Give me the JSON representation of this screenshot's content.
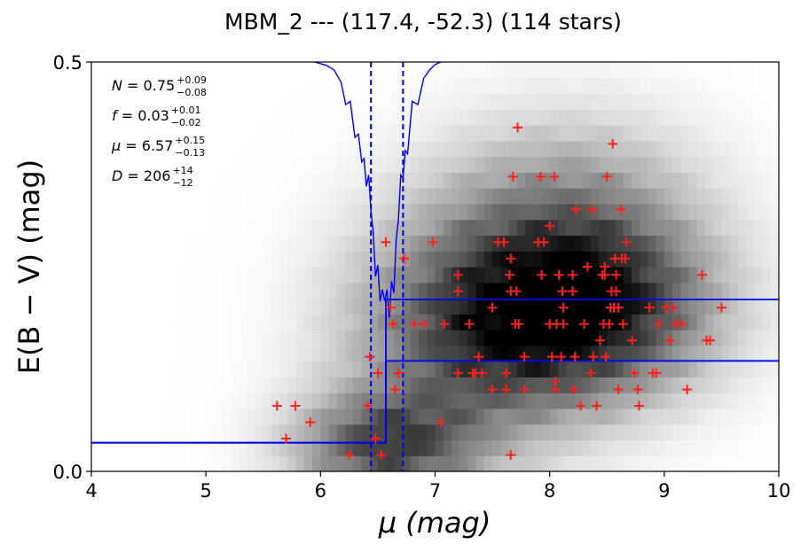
{
  "chart_data": {
    "type": "scatter",
    "title": "MBM_2 --- (117.4, -52.3) (114 stars)",
    "xlabel": "μ (mag)",
    "ylabel": "E(B − V) (mag)",
    "xlim": [
      4,
      10
    ],
    "ylim": [
      0.0,
      0.5
    ],
    "xticks": [
      "4",
      "5",
      "6",
      "7",
      "8",
      "9",
      "10"
    ],
    "yticks": [
      "0.5",
      "0.0"
    ],
    "background": "grayscale density map of reddening vs distance modulus",
    "annotations": [
      {
        "symbol": "N",
        "value": "0.75",
        "upper": "+0.09",
        "lower": "−0.08"
      },
      {
        "symbol": "f",
        "value": "0.03",
        "upper": "+0.01",
        "lower": "−0.02"
      },
      {
        "symbol": "μ",
        "value": "6.57",
        "upper": "+0.15",
        "lower": "−0.13"
      },
      {
        "symbol": "D",
        "value": "206",
        "upper": "+14",
        "lower": "−12"
      }
    ],
    "colors": {
      "stars": "#ff2020",
      "model": "#0000ee",
      "frame": "#000000"
    },
    "stars": {
      "marker": "plus",
      "x": [
        5.62,
        5.78,
        5.7,
        5.91,
        6.25,
        6.41,
        6.48,
        6.53,
        6.43,
        6.5,
        6.57,
        6.61,
        6.63,
        6.65,
        6.68,
        6.73,
        6.82,
        6.9,
        6.98,
        7.05,
        7.08,
        7.2,
        7.2,
        7.2,
        7.3,
        7.33,
        7.35,
        7.38,
        7.41,
        7.5,
        7.5,
        7.55,
        7.6,
        7.62,
        7.62,
        7.65,
        7.66,
        7.66,
        7.68,
        7.7,
        7.71,
        7.72,
        7.73,
        7.78,
        7.78,
        7.9,
        7.92,
        7.93,
        7.95,
        8.0,
        8.0,
        8.02,
        8.04,
        8.05,
        8.05,
        8.06,
        8.08,
        8.1,
        8.11,
        8.12,
        8.12,
        8.2,
        8.2,
        8.21,
        8.22,
        8.23,
        8.27,
        8.3,
        8.33,
        8.36,
        8.37,
        8.38,
        8.41,
        8.44,
        8.46,
        8.47,
        8.48,
        8.48,
        8.49,
        8.5,
        8.52,
        8.53,
        8.54,
        8.55,
        8.56,
        8.57,
        8.58,
        8.58,
        8.6,
        8.6,
        8.62,
        8.63,
        8.64,
        8.66,
        8.67,
        8.72,
        8.74,
        8.77,
        8.78,
        8.87,
        8.9,
        8.93,
        8.95,
        9.02,
        9.05,
        9.08,
        9.1,
        9.15,
        9.2,
        9.33,
        9.37,
        9.4,
        9.5,
        7.66
      ],
      "y": [
        0.08,
        0.08,
        0.04,
        0.06,
        0.02,
        0.08,
        0.04,
        0.02,
        0.14,
        0.12,
        0.28,
        0.2,
        0.18,
        0.1,
        0.12,
        0.26,
        0.18,
        0.18,
        0.28,
        0.06,
        0.18,
        0.24,
        0.22,
        0.12,
        0.18,
        0.12,
        0.12,
        0.14,
        0.12,
        0.2,
        0.1,
        0.28,
        0.28,
        0.1,
        0.12,
        0.24,
        0.26,
        0.22,
        0.36,
        0.18,
        0.22,
        0.42,
        0.18,
        0.14,
        0.1,
        0.28,
        0.36,
        0.24,
        0.28,
        0.3,
        0.18,
        0.14,
        0.36,
        0.11,
        0.1,
        0.18,
        0.24,
        0.14,
        0.22,
        0.18,
        0.2,
        0.22,
        0.24,
        0.1,
        0.14,
        0.32,
        0.08,
        0.18,
        0.25,
        0.12,
        0.32,
        0.14,
        0.08,
        0.16,
        0.24,
        0.18,
        0.24,
        0.25,
        0.14,
        0.36,
        0.18,
        0.2,
        0.22,
        0.4,
        0.2,
        0.26,
        0.24,
        0.22,
        0.1,
        0.2,
        0.32,
        0.26,
        0.18,
        0.26,
        0.28,
        0.16,
        0.12,
        0.1,
        0.08,
        0.2,
        0.12,
        0.12,
        0.18,
        0.2,
        0.16,
        0.2,
        0.18,
        0.18,
        0.1,
        0.24,
        0.16,
        0.16,
        0.2,
        0.02
      ]
    },
    "model_step": {
      "x": [
        4.0,
        6.57,
        6.57,
        6.57,
        10.0
      ],
      "y_lower": [
        0.035,
        0.035,
        0.135,
        0.135,
        0.135
      ],
      "y_upper": [
        0.035,
        0.035,
        0.21,
        0.21,
        0.21
      ]
    },
    "distance_markers": {
      "style": "dashed",
      "x": [
        6.44,
        6.72
      ]
    },
    "likelihood_curve": {
      "x": [
        5.95,
        6.05,
        6.12,
        6.18,
        6.22,
        6.26,
        6.3,
        6.33,
        6.36,
        6.38,
        6.4,
        6.42,
        6.44,
        6.46,
        6.48,
        6.5,
        6.52,
        6.54,
        6.56,
        6.58,
        6.6,
        6.62,
        6.64,
        6.66,
        6.68,
        6.7,
        6.72,
        6.74,
        6.76,
        6.8,
        6.85,
        6.9,
        6.95,
        7.0,
        7.05
      ],
      "y": [
        0.5,
        0.496,
        0.49,
        0.475,
        0.46,
        0.44,
        0.42,
        0.4,
        0.39,
        0.37,
        0.36,
        0.35,
        0.33,
        0.28,
        0.25,
        0.24,
        0.22,
        0.21,
        0.22,
        0.21,
        0.2,
        0.22,
        0.23,
        0.27,
        0.32,
        0.35,
        0.37,
        0.38,
        0.4,
        0.44,
        0.46,
        0.48,
        0.49,
        0.497,
        0.5
      ]
    }
  }
}
